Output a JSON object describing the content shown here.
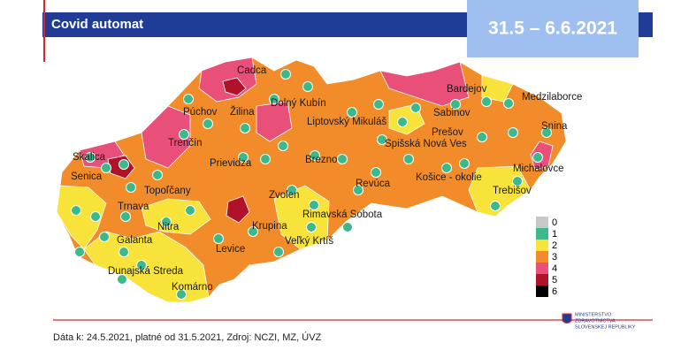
{
  "header": {
    "title": "Covid automat",
    "period": "31.5 – 6.6.2021"
  },
  "map": {
    "districts": [
      "Cadca",
      "Žilina",
      "Dolný Kubín",
      "Púchov",
      "Trenčín",
      "Liptovský Mikuláš",
      "Bardejov",
      "Medzilaborce",
      "Sabinov",
      "Prešov",
      "Snina",
      "Spišská Nová Ves",
      "Skalica",
      "Senica",
      "Prievidza",
      "Brezno",
      "Michalovce",
      "Topoľčany",
      "Revúca",
      "Košice - okolie",
      "Trebišov",
      "Zvolen",
      "Trnava",
      "Nitra",
      "Rimavská Sobota",
      "Krupina",
      "Galanta",
      "Levice",
      "Veľký Krtíš",
      "Dunajská Streda",
      "Komárno"
    ],
    "legend": [
      "0",
      "1",
      "2",
      "3",
      "4",
      "5",
      "6"
    ]
  },
  "footer": {
    "source": "Dáta k: 24.5.2021, platné od 31.5.2021, Zdroj: NCZI, MZ, ÚVZ",
    "logo": [
      "MINISTERSTVO",
      "ZDRAVOTNÍCTVA",
      "SLOVENSKEJ REPUBLIKY"
    ]
  }
}
